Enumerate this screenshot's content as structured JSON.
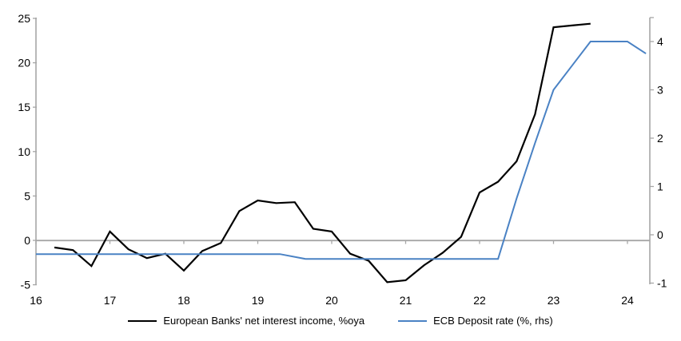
{
  "chart_data": {
    "type": "line",
    "title": "",
    "x_axis": {
      "ticks": [
        16,
        17,
        18,
        19,
        20,
        21,
        22,
        23,
        24
      ],
      "range": [
        16,
        24.3
      ],
      "grid": false
    },
    "left_axis": {
      "ticks": [
        25,
        20,
        15,
        10,
        5,
        0,
        -5
      ],
      "range": [
        -5,
        25
      ]
    },
    "right_axis": {
      "ticks": [
        4,
        3,
        2,
        1,
        0,
        -1
      ],
      "range": [
        -1,
        4.5
      ]
    },
    "zero_line": true,
    "legend_position": "bottom-center",
    "colors": {
      "nii_line": "#000000",
      "deposit_rate_line": "#4a82c4",
      "axis_gray": "#a6a6a6"
    },
    "series": [
      {
        "name": "European Banks' net interest income, %oya",
        "axis": "left",
        "color": "#000000",
        "points": [
          [
            16.25,
            -0.8
          ],
          [
            16.5,
            -1.1
          ],
          [
            16.75,
            -2.9
          ],
          [
            17.0,
            1.0
          ],
          [
            17.25,
            -1.0
          ],
          [
            17.5,
            -2.0
          ],
          [
            17.75,
            -1.5
          ],
          [
            18.0,
            -3.4
          ],
          [
            18.25,
            -1.2
          ],
          [
            18.5,
            -0.3
          ],
          [
            18.75,
            3.3
          ],
          [
            19.0,
            4.5
          ],
          [
            19.25,
            4.2
          ],
          [
            19.5,
            4.3
          ],
          [
            19.75,
            1.3
          ],
          [
            20.0,
            1.0
          ],
          [
            20.25,
            -1.5
          ],
          [
            20.5,
            -2.3
          ],
          [
            20.75,
            -4.7
          ],
          [
            21.0,
            -4.5
          ],
          [
            21.25,
            -2.8
          ],
          [
            21.5,
            -1.4
          ],
          [
            21.75,
            0.4
          ],
          [
            22.0,
            5.4
          ],
          [
            22.25,
            6.6
          ],
          [
            22.5,
            8.9
          ],
          [
            22.75,
            14.2
          ],
          [
            23.0,
            24.0
          ],
          [
            23.25,
            24.2
          ],
          [
            23.5,
            24.4
          ]
        ]
      },
      {
        "name": "ECB Deposit rate (%, rhs)",
        "axis": "right",
        "color": "#4a82c4",
        "points": [
          [
            16.0,
            -0.4
          ],
          [
            19.3,
            -0.4
          ],
          [
            19.65,
            -0.5
          ],
          [
            22.25,
            -0.5
          ],
          [
            22.5,
            0.75
          ],
          [
            22.75,
            1.9
          ],
          [
            23.0,
            3.0
          ],
          [
            23.25,
            3.5
          ],
          [
            23.5,
            4.0
          ],
          [
            24.0,
            4.0
          ],
          [
            24.25,
            3.75
          ]
        ]
      }
    ]
  },
  "legend": {
    "items": [
      {
        "label": "European Banks' net interest income, %oya",
        "color": "#000000"
      },
      {
        "label": "ECB Deposit rate (%, rhs)",
        "color": "#4a82c4"
      }
    ]
  }
}
